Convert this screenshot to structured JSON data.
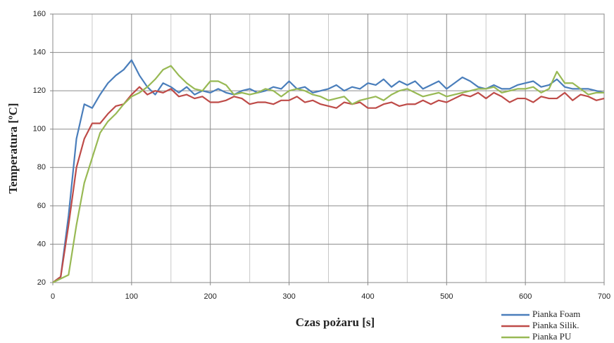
{
  "chart_data": {
    "type": "line",
    "x_label": "Czas pożaru [s]",
    "y_label": "Temperatura [ºC]",
    "x": [
      0,
      10,
      20,
      30,
      40,
      50,
      60,
      70,
      80,
      90,
      100,
      110,
      120,
      130,
      140,
      150,
      160,
      170,
      180,
      190,
      200,
      210,
      220,
      230,
      240,
      250,
      260,
      270,
      280,
      290,
      300,
      310,
      320,
      330,
      340,
      350,
      360,
      370,
      380,
      390,
      400,
      410,
      420,
      430,
      440,
      450,
      460,
      470,
      480,
      490,
      500,
      510,
      520,
      530,
      540,
      550,
      560,
      570,
      580,
      590,
      600,
      610,
      620,
      630,
      640,
      650,
      660,
      670,
      680,
      690,
      700
    ],
    "series": [
      {
        "name": "Pianka Foam",
        "color": "#4a7ebb",
        "values": [
          20,
          23,
          55,
          95,
          113,
          111,
          118,
          124,
          128,
          131,
          136,
          128,
          122,
          118,
          124,
          122,
          119,
          122,
          118,
          120,
          119,
          121,
          119,
          118,
          120,
          121,
          119,
          120,
          122,
          121,
          125,
          121,
          122,
          119,
          120,
          121,
          123,
          120,
          122,
          121,
          124,
          123,
          126,
          122,
          125,
          123,
          125,
          121,
          123,
          125,
          121,
          124,
          127,
          125,
          122,
          121,
          123,
          121,
          121,
          123,
          124,
          125,
          122,
          123,
          126,
          122,
          121,
          121,
          121,
          120,
          119
        ]
      },
      {
        "name": "Pianka Silik.",
        "color": "#be4b48",
        "values": [
          20,
          23,
          50,
          80,
          95,
          103,
          103,
          108,
          112,
          113,
          118,
          122,
          118,
          120,
          119,
          121,
          117,
          118,
          116,
          117,
          114,
          114,
          115,
          117,
          116,
          113,
          114,
          114,
          113,
          115,
          115,
          117,
          114,
          115,
          113,
          112,
          111,
          114,
          113,
          114,
          111,
          111,
          113,
          114,
          112,
          113,
          113,
          115,
          113,
          115,
          114,
          116,
          118,
          117,
          119,
          116,
          119,
          117,
          114,
          116,
          116,
          114,
          117,
          116,
          116,
          119,
          115,
          118,
          117,
          115,
          116
        ]
      },
      {
        "name": "Pianka PU",
        "color": "#98b954",
        "values": [
          20,
          22,
          24,
          50,
          72,
          85,
          98,
          104,
          108,
          113,
          117,
          119,
          122,
          126,
          131,
          133,
          128,
          124,
          121,
          120,
          125,
          125,
          123,
          118,
          119,
          118,
          119,
          121,
          120,
          117,
          120,
          121,
          120,
          118,
          117,
          115,
          116,
          117,
          113,
          115,
          116,
          117,
          115,
          118,
          120,
          121,
          119,
          117,
          118,
          119,
          117,
          118,
          119,
          120,
          121,
          121,
          122,
          119,
          120,
          121,
          121,
          122,
          119,
          121,
          130,
          124,
          124,
          121,
          118,
          119,
          119
        ]
      }
    ],
    "xlim": [
      0,
      700
    ],
    "xticks": [
      0,
      100,
      200,
      300,
      400,
      500,
      600,
      700
    ],
    "x_minor_ticks": [
      50,
      150,
      250,
      350,
      450,
      550,
      650
    ],
    "ylim": [
      20,
      160
    ],
    "yticks": [
      20,
      40,
      60,
      80,
      100,
      120,
      140,
      160
    ],
    "grid": true
  }
}
